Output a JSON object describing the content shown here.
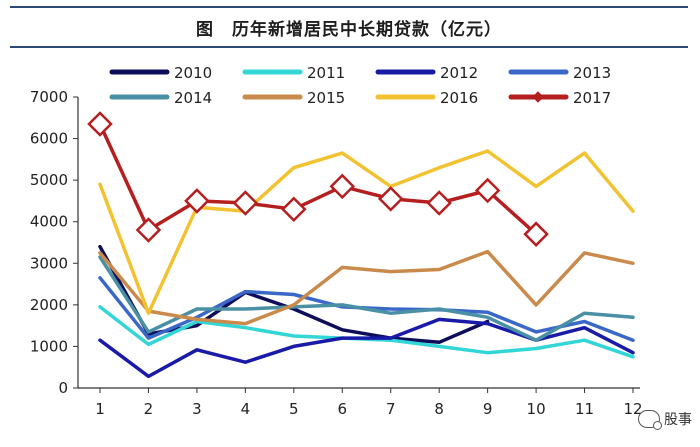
{
  "title": "图　历年新增居民中长期贷款（亿元）",
  "watermark": "股事",
  "chart_data": {
    "type": "line",
    "title": "图　历年新增居民中长期贷款（亿元）",
    "xlabel": "",
    "ylabel": "",
    "x": [
      "1",
      "2",
      "3",
      "4",
      "5",
      "6",
      "7",
      "8",
      "9",
      "10",
      "11",
      "12"
    ],
    "ylim": [
      0,
      7000
    ],
    "yticks": [
      0,
      1000,
      2000,
      3000,
      4000,
      5000,
      6000,
      7000
    ],
    "grid": false,
    "legend_position": "top",
    "series": [
      {
        "name": "2010",
        "color": "#0d0d5a",
        "marker": "none",
        "values": [
          3400,
          1300,
          1500,
          2300,
          1900,
          1400,
          1200,
          1100,
          1600,
          null,
          null,
          null
        ]
      },
      {
        "name": "2011",
        "color": "#33d6d6",
        "marker": "none",
        "values": [
          1950,
          1050,
          1600,
          1450,
          1250,
          1200,
          1150,
          1000,
          850,
          950,
          1150,
          750
        ]
      },
      {
        "name": "2012",
        "color": "#1a1aa8",
        "marker": "none",
        "values": [
          1150,
          280,
          920,
          620,
          1000,
          1200,
          1200,
          1650,
          1550,
          1150,
          1450,
          850
        ]
      },
      {
        "name": "2013",
        "color": "#3a68c8",
        "marker": "none",
        "values": [
          2650,
          1200,
          1700,
          2320,
          2250,
          1950,
          1900,
          1880,
          1820,
          1350,
          1600,
          1150
        ]
      },
      {
        "name": "2014",
        "color": "#4a90a4",
        "marker": "none",
        "values": [
          3150,
          1350,
          1900,
          1900,
          1950,
          2000,
          1800,
          1900,
          1700,
          1150,
          1800,
          1700
        ]
      },
      {
        "name": "2015",
        "color": "#c98a4b",
        "marker": "none",
        "values": [
          3250,
          1850,
          1650,
          1550,
          2000,
          2900,
          2800,
          2850,
          3280,
          2000,
          3250,
          3000
        ]
      },
      {
        "name": "2016",
        "color": "#f2c230",
        "marker": "none",
        "values": [
          4900,
          1800,
          4350,
          4250,
          5300,
          5650,
          4850,
          5300,
          5700,
          4850,
          5650,
          4250
        ]
      },
      {
        "name": "2017",
        "color": "#b51f1f",
        "marker": "diamond",
        "values": [
          6350,
          3800,
          4500,
          4450,
          4300,
          4850,
          4550,
          4450,
          4750,
          3700,
          null,
          null
        ]
      }
    ]
  }
}
